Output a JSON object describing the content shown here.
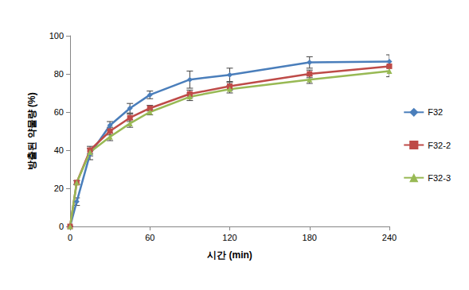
{
  "chart_data": {
    "type": "line",
    "x_label": "시간 (min)",
    "y_label": "방출된 약물량 (%)",
    "x": [
      0,
      5,
      15,
      30,
      45,
      60,
      90,
      120,
      180,
      240
    ],
    "series": [
      {
        "name": "F32",
        "color": "#4a7ebb",
        "marker": "diamond",
        "values": [
          0,
          13,
          38,
          53,
          62,
          69,
          77,
          79.5,
          86,
          86.5
        ],
        "errors": [
          0,
          2,
          3,
          2,
          2.5,
          2,
          4.5,
          3.5,
          3,
          3.5
        ]
      },
      {
        "name": "F32-2",
        "color": "#be4b48",
        "marker": "square",
        "values": [
          0,
          23,
          40,
          50,
          57,
          62,
          69.5,
          73.5,
          80,
          84
        ],
        "errors": [
          0,
          1,
          2,
          2,
          2,
          1.5,
          2,
          2,
          2,
          2.5
        ]
      },
      {
        "name": "F32-3",
        "color": "#98b954",
        "marker": "triangle",
        "values": [
          0,
          23,
          39,
          47,
          54,
          60,
          68,
          72,
          77,
          81.5
        ],
        "errors": [
          0,
          1,
          2,
          2,
          2,
          1.5,
          2,
          2,
          2,
          3
        ]
      }
    ],
    "xlim": [
      0,
      240
    ],
    "xticks": [
      0,
      60,
      120,
      180,
      240
    ],
    "ylim": [
      0,
      100
    ],
    "yticks": [
      0,
      20,
      40,
      60,
      80,
      100
    ],
    "grid": false,
    "legend": "right"
  }
}
